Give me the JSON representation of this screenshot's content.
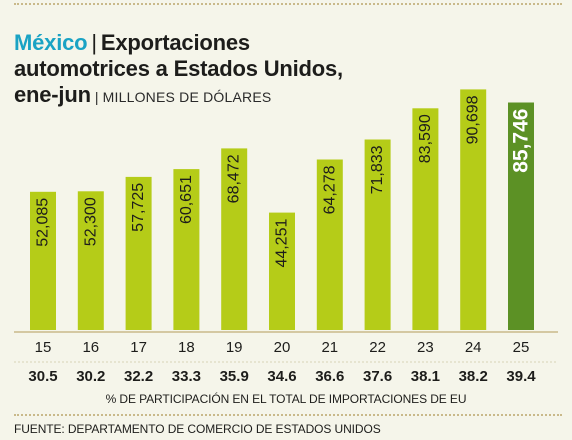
{
  "header": {
    "country": "México",
    "title_part1": "Exportaciones",
    "title_line2": "automotrices a Estados Unidos,",
    "title_line3": "ene-jun",
    "unit": "MILLONES DE DÓLARES"
  },
  "chart_data": {
    "type": "bar",
    "categories": [
      "15",
      "16",
      "17",
      "18",
      "19",
      "20",
      "21",
      "22",
      "23",
      "24",
      "25"
    ],
    "values": [
      52085,
      52300,
      57725,
      60651,
      68472,
      44251,
      64278,
      71833,
      83590,
      90698,
      85746
    ],
    "value_labels": [
      "52,085",
      "52,300",
      "57,725",
      "60,651",
      "68,472",
      "44,251",
      "64,278",
      "71,833",
      "83,590",
      "90,698",
      "85,746"
    ],
    "share_values": [
      "30.5",
      "30.2",
      "32.2",
      "33.3",
      "35.9",
      "34.6",
      "36.6",
      "37.6",
      "38.1",
      "38.2",
      "39.4"
    ],
    "share_label": "% DE PARTICIPACIÓN EN EL TOTAL DE IMPORTACIONES DE EU",
    "ylim": [
      0,
      95000
    ],
    "colors": {
      "bar": "#b5cc18",
      "highlight": "#5c9125",
      "bar_text": "#1d1d1b",
      "highlight_text": "#ffffff"
    },
    "highlight_index": 10
  },
  "footer": {
    "source": "FUENTE: DEPARTAMENTO DE COMERCIO DE ESTADOS UNIDOS"
  }
}
